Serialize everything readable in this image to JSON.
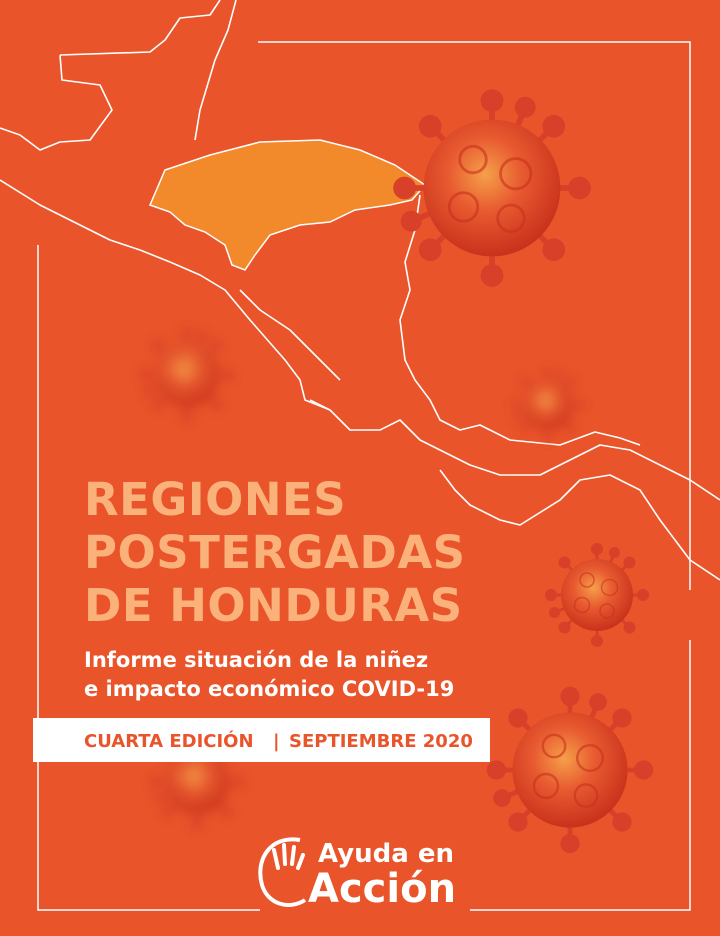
{
  "cover": {
    "title_lines": [
      "REGIONES",
      "POSTERGADAS",
      "DE HONDURAS"
    ],
    "subtitle_lines": [
      "Informe situación de la niñez",
      "e impacto económico COVID-19"
    ],
    "edition": "CUARTA EDICIÓN",
    "separator": "|",
    "date": "SEPTIEMBRE 2020",
    "logo_lines": [
      "Ayuda en",
      "Acción"
    ]
  }
}
